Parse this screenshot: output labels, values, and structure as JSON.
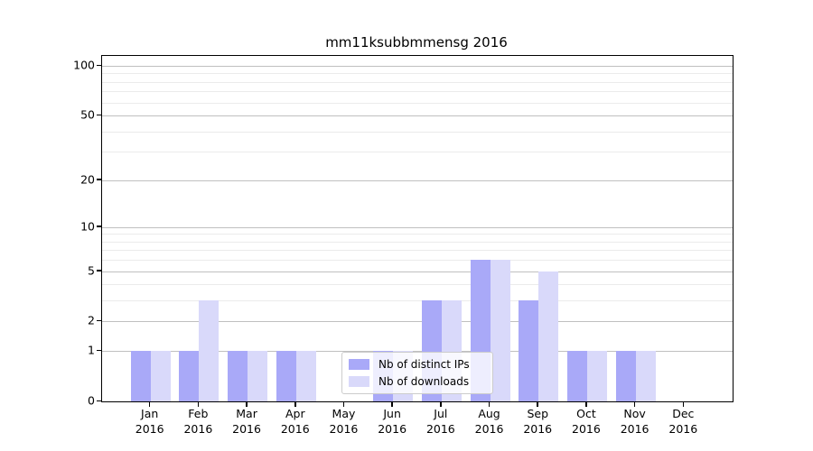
{
  "title": "mm11ksubbmmensg 2016",
  "chart_data": {
    "type": "bar",
    "year": "2016",
    "categories": [
      "Jan",
      "Feb",
      "Mar",
      "Apr",
      "May",
      "Jun",
      "Jul",
      "Aug",
      "Sep",
      "Oct",
      "Nov",
      "Dec"
    ],
    "series": [
      {
        "name": "Nb of distinct IPs",
        "color": "#a9a9f8",
        "values": [
          1,
          1,
          1,
          1,
          0,
          1,
          3,
          6,
          3,
          1,
          1,
          0
        ]
      },
      {
        "name": "Nb of downloads",
        "color": "#d9d9fa",
        "values": [
          1,
          3,
          1,
          1,
          0,
          1,
          3,
          6,
          5,
          1,
          1,
          0
        ]
      }
    ],
    "yscale": "log1p",
    "y_major_ticks": [
      0,
      1,
      2,
      5,
      10,
      20,
      50,
      100
    ],
    "y_minor_ticks": [
      3,
      4,
      6,
      7,
      8,
      9,
      30,
      40,
      60,
      70,
      80,
      90
    ],
    "ylim": [
      0,
      115
    ],
    "grid": "on",
    "legend_position": "lower-center",
    "colors": {
      "major_grid": "#c0c0c0",
      "minor_grid": "#ebebeb",
      "spine": "#000000",
      "text": "#000000",
      "background": "#ffffff"
    }
  }
}
